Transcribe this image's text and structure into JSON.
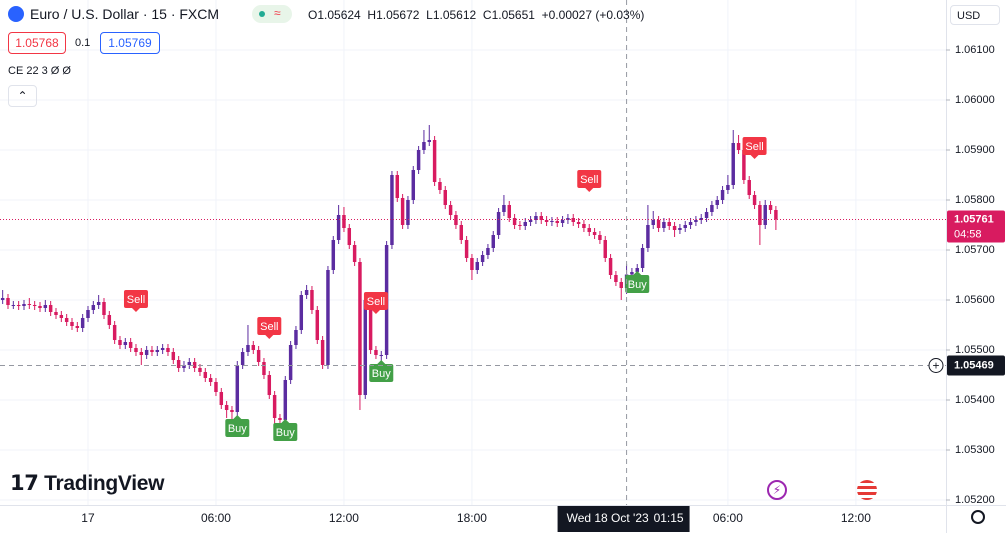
{
  "header": {
    "symbol": "Euro / U.S. Dollar · 15 · FXCM",
    "legend": [
      {
        "key": "O",
        "value": "1.05624"
      },
      {
        "key": "H",
        "value": "1.05672"
      },
      {
        "key": "L",
        "value": "1.05612"
      },
      {
        "key": "C",
        "value": "1.05651"
      }
    ],
    "change": "+0.00027 (+0.03%)",
    "bid": "1.05768",
    "spread": "0.1",
    "ask": "1.05769",
    "indicator": "CE 22 3 Ø Ø",
    "currency": "USD",
    "logo": "TradingView"
  },
  "chart_data": {
    "type": "candlestick",
    "up_color": "#5b2ca0",
    "down_color": "#d81b60",
    "ylim": [
      1.0519,
      1.062
    ],
    "yticks": [
      {
        "value": 1.052,
        "label": "1.05200"
      },
      {
        "value": 1.053,
        "label": "1.05300"
      },
      {
        "value": 1.054,
        "label": "1.05400"
      },
      {
        "value": 1.055,
        "label": "1.05500"
      },
      {
        "value": 1.056,
        "label": "1.05600"
      },
      {
        "value": 1.057,
        "label": "1.05700"
      },
      {
        "value": 1.058,
        "label": "1.05800"
      },
      {
        "value": 1.059,
        "label": "1.05900"
      },
      {
        "value": 1.06,
        "label": "1.06000"
      },
      {
        "value": 1.061,
        "label": "1.06100"
      }
    ],
    "xlim": [
      -0.5,
      176.9
    ],
    "xticks": [
      {
        "value": 16,
        "label": "17"
      },
      {
        "value": 40,
        "label": "06:00"
      },
      {
        "value": 64,
        "label": "12:00"
      },
      {
        "value": 88,
        "label": "18:00"
      },
      {
        "value": 136,
        "label": "06:00"
      },
      {
        "value": 160,
        "label": "12:00"
      }
    ],
    "grid": true,
    "open": [
      1.056,
      1.05604,
      1.0559,
      1.0559,
      1.05588,
      1.05592,
      1.0559,
      1.05588,
      1.05584,
      1.0559,
      1.05576,
      1.0557,
      1.05564,
      1.05556,
      1.05548,
      1.05544,
      1.05564,
      1.0558,
      1.0559,
      1.05596,
      1.0557,
      1.0555,
      1.0552,
      1.0551,
      1.05516,
      1.05504,
      1.05496,
      1.0549,
      1.055,
      1.05496,
      1.055,
      1.05504,
      1.05496,
      1.0548,
      1.05464,
      1.0547,
      1.05476,
      1.05464,
      1.05456,
      1.05444,
      1.05436,
      1.05416,
      1.0539,
      1.0538,
      1.05376,
      1.0547,
      1.05496,
      1.0551,
      1.055,
      1.05476,
      1.0545,
      1.0541,
      1.05364,
      1.0536,
      1.0544,
      1.0551,
      1.0554,
      1.0561,
      1.0562,
      1.0558,
      1.0552,
      1.0547,
      1.0566,
      1.0572,
      1.0577,
      1.05744,
      1.0571,
      1.05676,
      1.0541,
      1.056,
      1.055,
      1.0549,
      1.0549,
      1.0571,
      1.0585,
      1.05804,
      1.0575,
      1.058,
      1.0586,
      1.059,
      1.05916,
      1.0592,
      1.05836,
      1.0582,
      1.0579,
      1.0577,
      1.0575,
      1.0572,
      1.05684,
      1.0566,
      1.05676,
      1.0569,
      1.05704,
      1.0573,
      1.05776,
      1.0579,
      1.05764,
      1.0575,
      1.05748,
      1.05756,
      1.0576,
      1.05768,
      1.0576,
      1.05756,
      1.05758,
      1.05754,
      1.0576,
      1.05764,
      1.05756,
      1.05752,
      1.05744,
      1.05736,
      1.0573,
      1.0572,
      1.05684,
      1.0565,
      1.05636,
      1.05624,
      1.05651,
      1.05656,
      1.05664,
      1.05704,
      1.0575,
      1.0576,
      1.05744,
      1.05756,
      1.05748,
      1.0574,
      1.05744,
      1.0575,
      1.05756,
      1.0576,
      1.05764,
      1.05776,
      1.0579,
      1.058,
      1.0582,
      1.0583,
      1.05914,
      1.059,
      1.0584,
      1.0581,
      1.0579,
      1.0575,
      1.0579,
      1.0578
    ],
    "high": [
      1.0562,
      1.05612,
      1.05598,
      1.05598,
      1.056,
      1.05604,
      1.05598,
      1.05596,
      1.056,
      1.05598,
      1.05584,
      1.05578,
      1.05572,
      1.05564,
      1.05556,
      1.05572,
      1.05588,
      1.05598,
      1.0561,
      1.05604,
      1.05578,
      1.05558,
      1.05528,
      1.05524,
      1.05524,
      1.05512,
      1.05504,
      1.05508,
      1.05508,
      1.05508,
      1.05512,
      1.05512,
      1.05504,
      1.05488,
      1.05478,
      1.05484,
      1.05484,
      1.05472,
      1.05464,
      1.05452,
      1.05444,
      1.05424,
      1.05398,
      1.05388,
      1.05478,
      1.05504,
      1.0555,
      1.05518,
      1.05508,
      1.05484,
      1.05458,
      1.05418,
      1.05372,
      1.05448,
      1.05518,
      1.05548,
      1.05618,
      1.0563,
      1.05628,
      1.05588,
      1.05528,
      1.05668,
      1.05728,
      1.0579,
      1.05786,
      1.05752,
      1.05718,
      1.05684,
      1.05608,
      1.05608,
      1.05508,
      1.05498,
      1.05718,
      1.05858,
      1.05858,
      1.05812,
      1.05808,
      1.05868,
      1.05908,
      1.0594,
      1.0595,
      1.05928,
      1.05844,
      1.05828,
      1.05798,
      1.05778,
      1.05758,
      1.05728,
      1.05692,
      1.05684,
      1.05698,
      1.05712,
      1.05738,
      1.05784,
      1.0581,
      1.05798,
      1.05772,
      1.05758,
      1.05764,
      1.05768,
      1.05776,
      1.05776,
      1.05768,
      1.05766,
      1.05766,
      1.05768,
      1.05772,
      1.05772,
      1.05764,
      1.0576,
      1.05752,
      1.05744,
      1.05738,
      1.05728,
      1.05692,
      1.05658,
      1.05644,
      1.05672,
      1.05664,
      1.05672,
      1.05712,
      1.0579,
      1.05778,
      1.05768,
      1.05764,
      1.05764,
      1.05756,
      1.05752,
      1.05758,
      1.05764,
      1.05768,
      1.05772,
      1.05784,
      1.05798,
      1.05808,
      1.05828,
      1.0585,
      1.0594,
      1.0593,
      1.05908,
      1.05848,
      1.05818,
      1.05798,
      1.058,
      1.05798,
      1.05788
    ],
    "low": [
      1.05592,
      1.05582,
      1.05582,
      1.0558,
      1.0558,
      1.05582,
      1.0558,
      1.05576,
      1.05576,
      1.05568,
      1.05562,
      1.05556,
      1.05548,
      1.0554,
      1.05536,
      1.05536,
      1.05556,
      1.05572,
      1.05582,
      1.05562,
      1.05542,
      1.05512,
      1.05502,
      1.05502,
      1.05496,
      1.05488,
      1.0547,
      1.05482,
      1.05488,
      1.05488,
      1.05492,
      1.05488,
      1.05472,
      1.05456,
      1.05456,
      1.05462,
      1.05456,
      1.05448,
      1.05436,
      1.05428,
      1.05408,
      1.05382,
      1.05364,
      1.0535,
      1.0536,
      1.05462,
      1.05488,
      1.05492,
      1.05468,
      1.05442,
      1.05402,
      1.05336,
      1.0534,
      1.05352,
      1.05432,
      1.05502,
      1.05532,
      1.05602,
      1.05572,
      1.05512,
      1.05462,
      1.05462,
      1.05652,
      1.05712,
      1.05736,
      1.05702,
      1.05668,
      1.0538,
      1.05402,
      1.05492,
      1.05482,
      1.0547,
      1.05482,
      1.05702,
      1.05796,
      1.05742,
      1.05742,
      1.05792,
      1.05852,
      1.05892,
      1.05908,
      1.05828,
      1.05812,
      1.05782,
      1.05762,
      1.05742,
      1.05712,
      1.05676,
      1.0564,
      1.05652,
      1.05668,
      1.05682,
      1.05696,
      1.05722,
      1.05768,
      1.05756,
      1.05742,
      1.0574,
      1.0574,
      1.05748,
      1.05752,
      1.05752,
      1.05748,
      1.05748,
      1.05746,
      1.05746,
      1.05752,
      1.05748,
      1.05744,
      1.05736,
      1.05728,
      1.05722,
      1.05712,
      1.05676,
      1.05642,
      1.05628,
      1.056,
      1.05612,
      1.0564,
      1.05648,
      1.05656,
      1.05696,
      1.05742,
      1.05736,
      1.05736,
      1.0574,
      1.05726,
      1.05732,
      1.05736,
      1.05742,
      1.05748,
      1.05752,
      1.05756,
      1.05768,
      1.05782,
      1.05792,
      1.05812,
      1.05822,
      1.05892,
      1.05832,
      1.05802,
      1.05782,
      1.0571,
      1.05742,
      1.05772,
      1.0574
    ],
    "close": [
      1.05604,
      1.0559,
      1.0559,
      1.05588,
      1.05592,
      1.0559,
      1.05588,
      1.05584,
      1.0559,
      1.05576,
      1.0557,
      1.05564,
      1.05556,
      1.05548,
      1.05544,
      1.05564,
      1.0558,
      1.0559,
      1.05596,
      1.0557,
      1.0555,
      1.0552,
      1.0551,
      1.05516,
      1.05504,
      1.05496,
      1.0549,
      1.055,
      1.05496,
      1.055,
      1.05504,
      1.05496,
      1.0548,
      1.05464,
      1.0547,
      1.05476,
      1.05464,
      1.05456,
      1.05444,
      1.05436,
      1.05416,
      1.0539,
      1.0538,
      1.05376,
      1.0547,
      1.05496,
      1.0551,
      1.055,
      1.05476,
      1.0545,
      1.0541,
      1.05364,
      1.0536,
      1.0544,
      1.0551,
      1.0554,
      1.0561,
      1.0562,
      1.0558,
      1.0552,
      1.0547,
      1.0566,
      1.0572,
      1.0577,
      1.05744,
      1.0571,
      1.05676,
      1.0541,
      1.056,
      1.055,
      1.0549,
      1.0549,
      1.0571,
      1.0585,
      1.05804,
      1.0575,
      1.058,
      1.0586,
      1.059,
      1.05916,
      1.0592,
      1.05836,
      1.0582,
      1.0579,
      1.0577,
      1.0575,
      1.0572,
      1.05684,
      1.0566,
      1.05676,
      1.0569,
      1.05704,
      1.0573,
      1.05776,
      1.0579,
      1.05764,
      1.0575,
      1.05748,
      1.05756,
      1.0576,
      1.05768,
      1.0576,
      1.05756,
      1.05758,
      1.05754,
      1.0576,
      1.05764,
      1.05756,
      1.05752,
      1.05744,
      1.05736,
      1.0573,
      1.0572,
      1.05684,
      1.0565,
      1.05636,
      1.05624,
      1.05651,
      1.05656,
      1.05664,
      1.05704,
      1.0575,
      1.0576,
      1.05744,
      1.05756,
      1.05748,
      1.0574,
      1.05744,
      1.0575,
      1.05756,
      1.0576,
      1.05764,
      1.05776,
      1.0579,
      1.058,
      1.0582,
      1.0583,
      1.05914,
      1.059,
      1.0584,
      1.0581,
      1.0579,
      1.0575,
      1.0579,
      1.0578,
      1.05761
    ],
    "signals": [
      {
        "label": "Sell",
        "candle": 25
      },
      {
        "label": "Buy",
        "candle": 44
      },
      {
        "label": "Sell",
        "candle": 50
      },
      {
        "label": "Buy",
        "candle": 53
      },
      {
        "label": "Sell",
        "candle": 70
      },
      {
        "label": "Buy",
        "candle": 71
      },
      {
        "label": "Sell",
        "candle": 110
      },
      {
        "label": "Buy",
        "candle": 119
      },
      {
        "label": "Sell",
        "candle": 141
      }
    ],
    "sell_color": "#f23645",
    "buy_color": "#43a047",
    "last_price": {
      "value": 1.05761,
      "countdown": "04:58",
      "color": "#d81b60"
    },
    "crosshair": {
      "candle": 117,
      "price": 1.05469,
      "date": "Wed 18 Oct '23",
      "time": "01:15"
    }
  }
}
